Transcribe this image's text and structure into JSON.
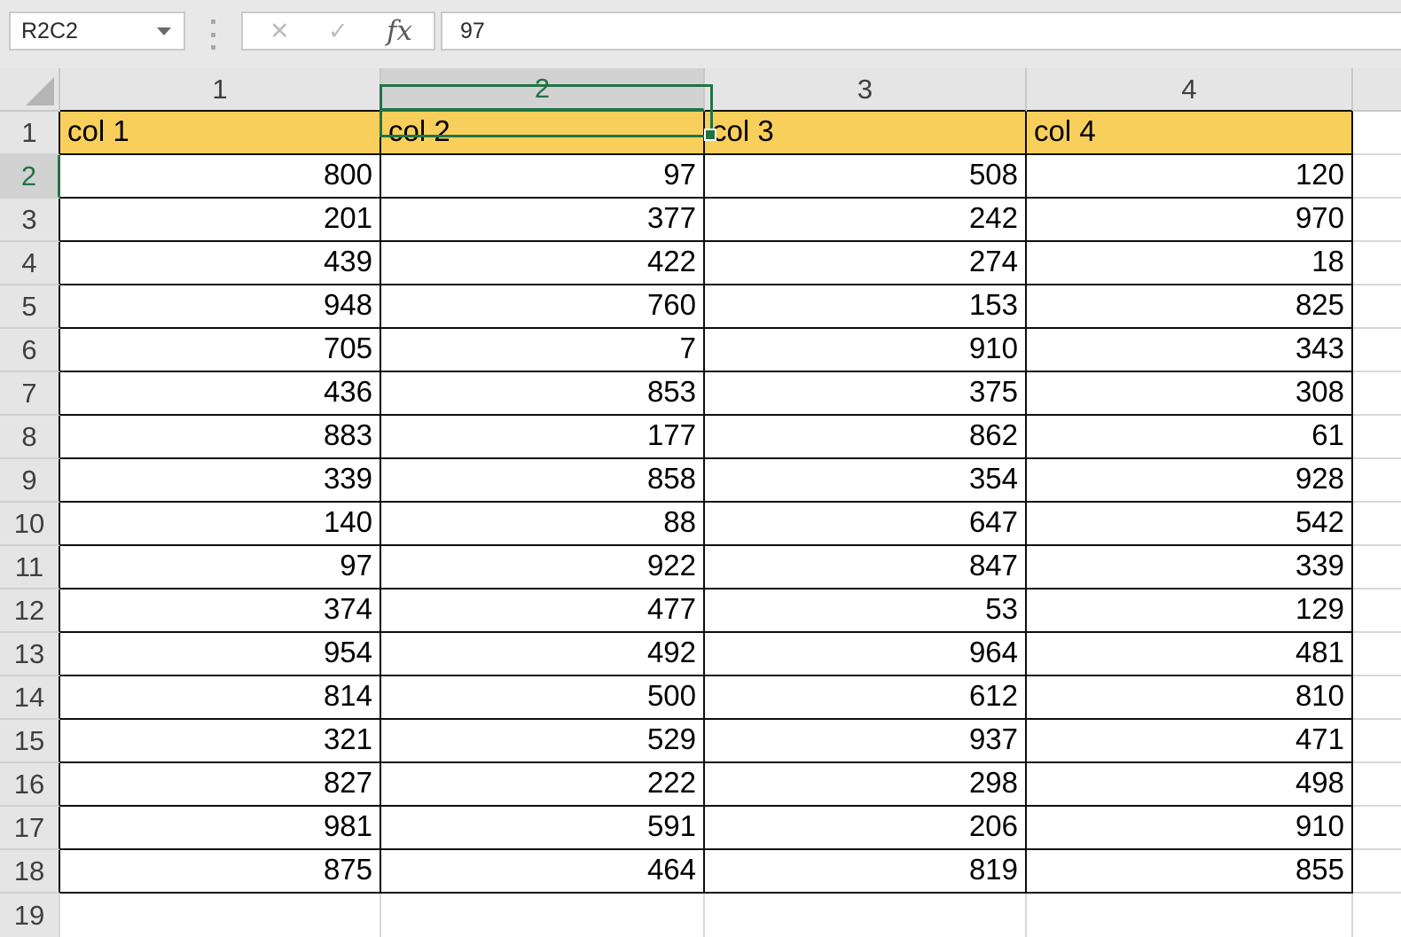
{
  "name_box": {
    "value": "R2C2"
  },
  "formula_bar": {
    "cancel": "✕",
    "confirm": "✓",
    "fx": "fx",
    "value": "97"
  },
  "sheet": {
    "col_headers": [
      "1",
      "2",
      "3",
      "4"
    ],
    "row_headers": [
      "1",
      "2",
      "3",
      "4",
      "5",
      "6",
      "7",
      "8",
      "9",
      "10",
      "11",
      "12",
      "13",
      "14",
      "15",
      "16",
      "17",
      "18",
      "19"
    ],
    "selected_col": 2,
    "selected_row": 2,
    "selected_cell_ref": "R2C2",
    "table_header_row": [
      "col 1",
      "col 2",
      "col 3",
      "col 4"
    ],
    "data_rows": [
      [
        "800",
        "97",
        "508",
        "120"
      ],
      [
        "201",
        "377",
        "242",
        "970"
      ],
      [
        "439",
        "422",
        "274",
        "18"
      ],
      [
        "948",
        "760",
        "153",
        "825"
      ],
      [
        "705",
        "7",
        "910",
        "343"
      ],
      [
        "436",
        "853",
        "375",
        "308"
      ],
      [
        "883",
        "177",
        "862",
        "61"
      ],
      [
        "339",
        "858",
        "354",
        "928"
      ],
      [
        "140",
        "88",
        "647",
        "542"
      ],
      [
        "97",
        "922",
        "847",
        "339"
      ],
      [
        "374",
        "477",
        "53",
        "129"
      ],
      [
        "954",
        "492",
        "964",
        "481"
      ],
      [
        "814",
        "500",
        "612",
        "810"
      ],
      [
        "321",
        "529",
        "937",
        "471"
      ],
      [
        "827",
        "222",
        "298",
        "498"
      ],
      [
        "981",
        "591",
        "206",
        "910"
      ],
      [
        "875",
        "464",
        "819",
        "855"
      ]
    ]
  },
  "colors": {
    "selection_green": "#217346",
    "header_fill_yellow": "#F9CF5B",
    "grid_border_dark": "#0d0d0d"
  }
}
